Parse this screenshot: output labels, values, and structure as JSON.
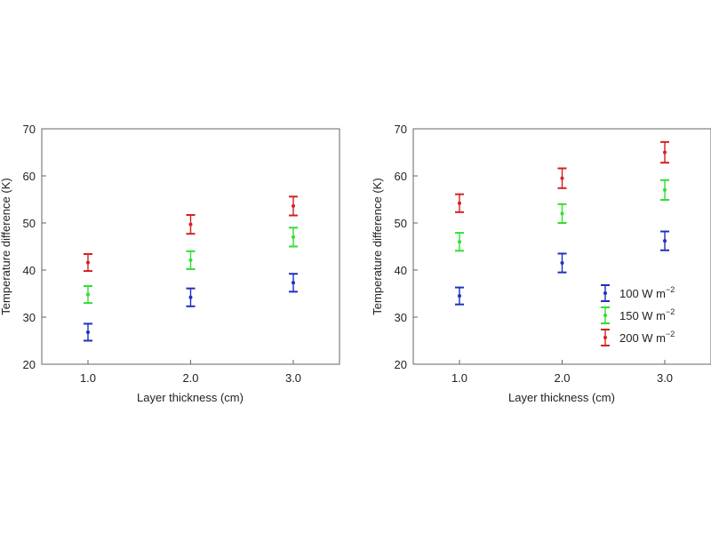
{
  "chart_data": [
    {
      "type": "scatter",
      "title": "",
      "xlabel": "Layer thickness (cm)",
      "ylabel": "Temperature difference (K)",
      "xlim": [
        0.55,
        3.45
      ],
      "ylim": [
        20,
        70
      ],
      "xticks": [
        "1.0",
        "2.0",
        "3.0"
      ],
      "yticks": [
        "20",
        "30",
        "40",
        "50",
        "60",
        "70"
      ],
      "error_bars": true,
      "legend": null,
      "x": [
        1.0,
        2.0,
        3.0
      ],
      "series": [
        {
          "color": "#1f2fbf",
          "values": [
            26.8,
            34.2,
            37.3
          ],
          "errors": [
            1.8,
            1.9,
            1.9
          ]
        },
        {
          "color": "#33dd33",
          "values": [
            34.8,
            42.1,
            47.0
          ],
          "errors": [
            1.8,
            1.9,
            2.0
          ]
        },
        {
          "color": "#d42020",
          "values": [
            41.6,
            49.7,
            53.6
          ],
          "errors": [
            1.8,
            2.0,
            2.0
          ]
        }
      ]
    },
    {
      "type": "scatter",
      "title": "",
      "xlabel": "Layer thickness (cm)",
      "ylabel": "Temperature difference (K)",
      "xlim": [
        0.55,
        3.45
      ],
      "ylim": [
        20,
        70
      ],
      "xticks": [
        "1.0",
        "2.0",
        "3.0"
      ],
      "yticks": [
        "20",
        "30",
        "40",
        "50",
        "60",
        "70"
      ],
      "error_bars": true,
      "legend": "lower-right",
      "x": [
        1.0,
        2.0,
        3.0
      ],
      "series": [
        {
          "name": "100 W m",
          "name_sup": "−2",
          "color": "#1f2fbf",
          "values": [
            34.5,
            41.5,
            46.2
          ],
          "errors": [
            1.8,
            2.0,
            2.0
          ]
        },
        {
          "name": "150 W m",
          "name_sup": "−2",
          "color": "#33dd33",
          "values": [
            46.0,
            52.0,
            57.0
          ],
          "errors": [
            1.9,
            2.0,
            2.1
          ]
        },
        {
          "name": "200 W m",
          "name_sup": "−2",
          "color": "#d42020",
          "values": [
            54.2,
            59.5,
            65.0
          ],
          "errors": [
            1.9,
            2.1,
            2.2
          ]
        }
      ]
    }
  ]
}
